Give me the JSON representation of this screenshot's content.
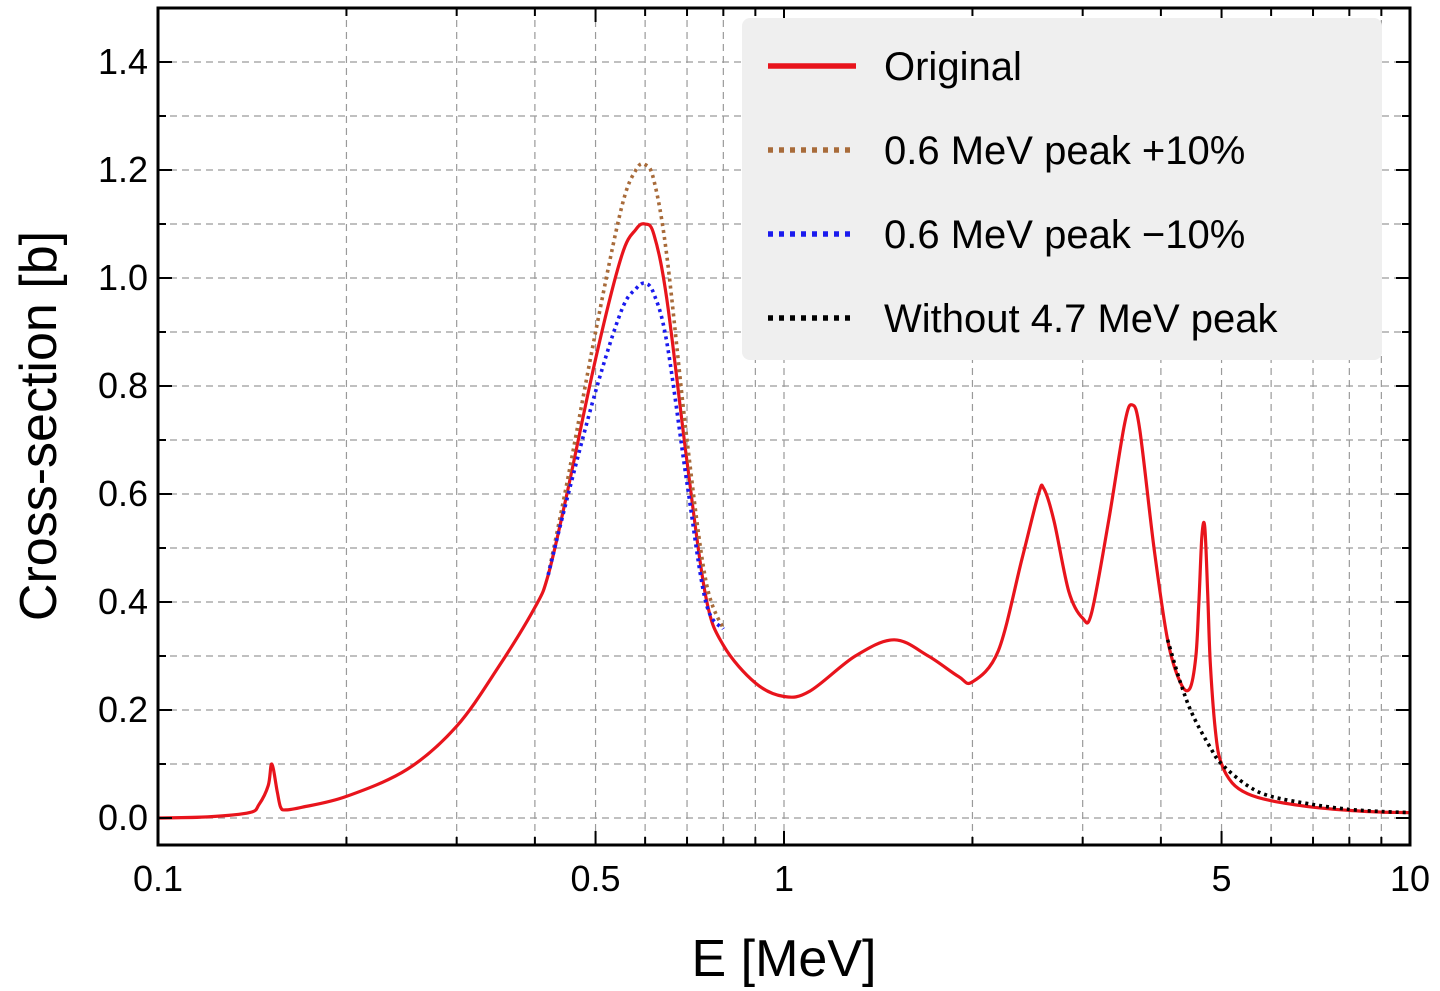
{
  "chart_data": {
    "type": "line",
    "xscale": "log",
    "xlabel": "E [MeV]",
    "ylabel": "Cross-section [b]",
    "xlim": [
      0.1,
      10
    ],
    "ylim": [
      -0.05,
      1.5
    ],
    "grid": true,
    "legend_position": "top-right",
    "x_ticks": [
      {
        "value": 0.1,
        "label": "0.1"
      },
      {
        "value": 0.5,
        "label": "0.5"
      },
      {
        "value": 1,
        "label": "1"
      },
      {
        "value": 5,
        "label": "5"
      },
      {
        "value": 10,
        "label": "10"
      }
    ],
    "y_ticks": [
      {
        "value": 0.0,
        "label": "0.0"
      },
      {
        "value": 0.2,
        "label": "0.2"
      },
      {
        "value": 0.4,
        "label": "0.4"
      },
      {
        "value": 0.6,
        "label": "0.6"
      },
      {
        "value": 0.8,
        "label": "0.8"
      },
      {
        "value": 1.0,
        "label": "1.0"
      },
      {
        "value": 1.2,
        "label": "1.2"
      },
      {
        "value": 1.4,
        "label": "1.4"
      }
    ],
    "series": [
      {
        "name": "Original",
        "color": "#e8141c",
        "style": "solid",
        "x": [
          0.1,
          0.12,
          0.14,
          0.145,
          0.15,
          0.152,
          0.155,
          0.157,
          0.16,
          0.17,
          0.2,
          0.25,
          0.3,
          0.35,
          0.4,
          0.42,
          0.45,
          0.5,
          0.55,
          0.58,
          0.6,
          0.62,
          0.65,
          0.7,
          0.75,
          0.8,
          0.9,
          1.0,
          1.1,
          1.3,
          1.5,
          1.7,
          1.9,
          2.0,
          2.2,
          2.4,
          2.55,
          2.6,
          2.7,
          2.85,
          3.0,
          3.1,
          3.3,
          3.5,
          3.6,
          3.7,
          3.9,
          4.1,
          4.3,
          4.45,
          4.55,
          4.6,
          4.65,
          4.7,
          4.75,
          4.8,
          4.9,
          5.0,
          5.2,
          5.5,
          6,
          7,
          8,
          9,
          10
        ],
        "y": [
          0.0,
          0.002,
          0.01,
          0.025,
          0.06,
          0.1,
          0.05,
          0.02,
          0.015,
          0.02,
          0.04,
          0.09,
          0.17,
          0.28,
          0.39,
          0.45,
          0.6,
          0.85,
          1.04,
          1.09,
          1.1,
          1.08,
          0.96,
          0.66,
          0.41,
          0.32,
          0.25,
          0.225,
          0.235,
          0.3,
          0.33,
          0.3,
          0.262,
          0.252,
          0.31,
          0.48,
          0.6,
          0.61,
          0.55,
          0.42,
          0.37,
          0.38,
          0.55,
          0.73,
          0.765,
          0.72,
          0.5,
          0.33,
          0.25,
          0.24,
          0.3,
          0.4,
          0.52,
          0.54,
          0.42,
          0.28,
          0.15,
          0.1,
          0.065,
          0.045,
          0.032,
          0.02,
          0.014,
          0.011,
          0.01
        ]
      },
      {
        "name": "0.6 MeV peak +10%",
        "color": "#a86b3a",
        "style": "dotted",
        "x": [
          0.42,
          0.45,
          0.5,
          0.55,
          0.58,
          0.6,
          0.62,
          0.65,
          0.7,
          0.75,
          0.8
        ],
        "y": [
          0.45,
          0.62,
          0.9,
          1.13,
          1.2,
          1.21,
          1.18,
          1.04,
          0.7,
          0.44,
          0.35
        ]
      },
      {
        "name": "0.6 MeV peak −10%",
        "color": "#1a1aee",
        "style": "dotted",
        "x": [
          0.42,
          0.45,
          0.5,
          0.55,
          0.58,
          0.6,
          0.62,
          0.65,
          0.7,
          0.75,
          0.8
        ],
        "y": [
          0.45,
          0.59,
          0.79,
          0.94,
          0.98,
          0.99,
          0.97,
          0.88,
          0.62,
          0.4,
          0.35
        ]
      },
      {
        "name": "Without 4.7 MeV peak",
        "color": "#000000",
        "style": "dotted",
        "x": [
          4.1,
          4.3,
          4.5,
          4.8,
          5.0,
          5.5,
          6,
          7,
          8,
          9,
          10
        ],
        "y": [
          0.33,
          0.25,
          0.19,
          0.13,
          0.1,
          0.06,
          0.04,
          0.025,
          0.016,
          0.012,
          0.01
        ]
      }
    ]
  }
}
